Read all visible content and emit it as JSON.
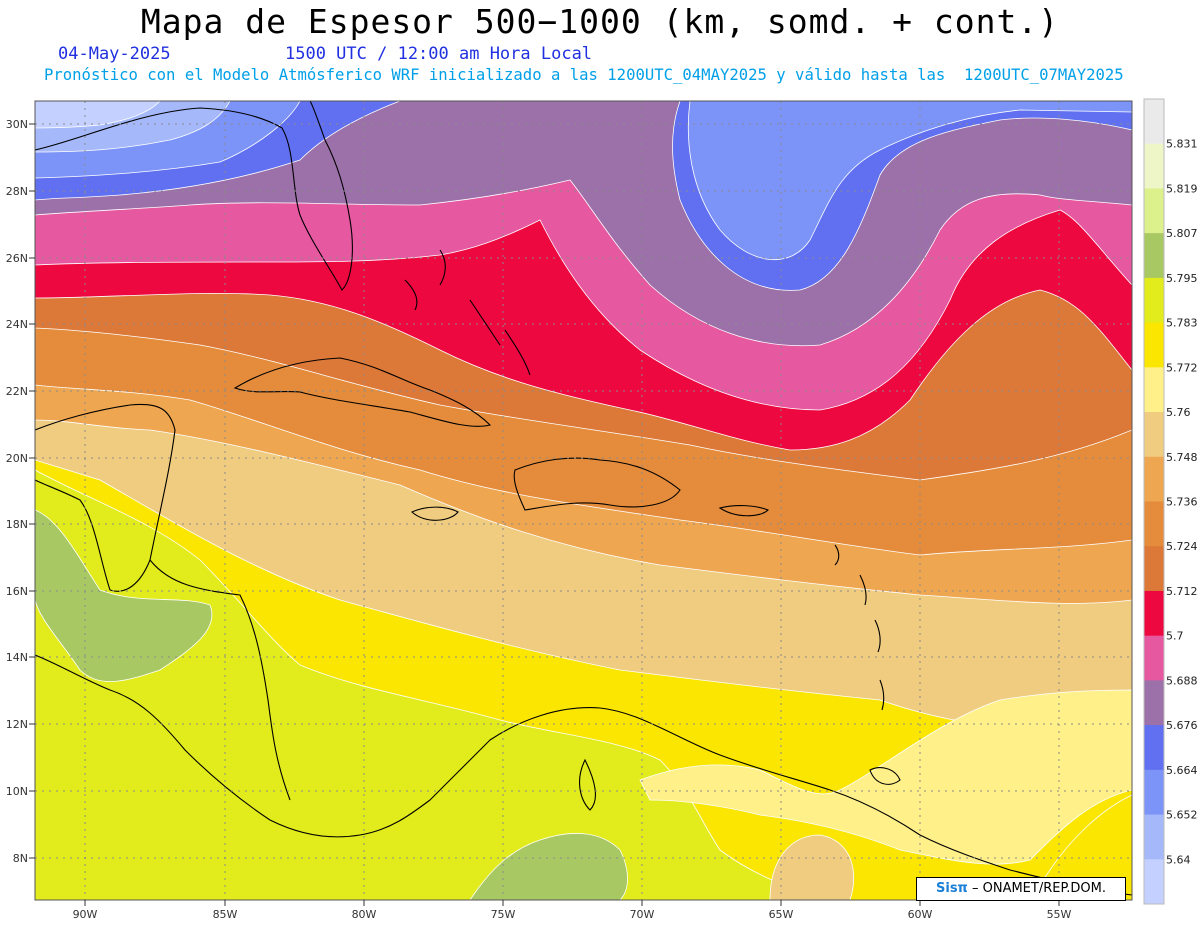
{
  "header": {
    "title": "Mapa de Espesor 500−1000 (km, somd. + cont.)",
    "date": "04-May-2025",
    "time": "1500 UTC / 12:00 am Hora Local",
    "description": "Pronóstico con el Modelo Atmósferico WRF inicializado a las 1200UTC_04MAY2025 y válido hasta las  1200UTC_07MAY2025"
  },
  "axes": {
    "lat_labels": [
      "30N",
      "28N",
      "26N",
      "24N",
      "22N",
      "20N",
      "18N",
      "16N",
      "14N",
      "12N",
      "10N",
      "8N"
    ],
    "lon_labels": [
      "90W",
      "85W",
      "80W",
      "75W",
      "70W",
      "65W",
      "60W",
      "55W"
    ]
  },
  "colorbar": {
    "labels": [
      "5.831",
      "5.819",
      "5.807",
      "5.795",
      "5.783",
      "5.772",
      "5.76",
      "5.748",
      "5.736",
      "5.724",
      "5.712",
      "5.7",
      "5.688",
      "5.676",
      "5.664",
      "5.652",
      "5.64"
    ],
    "colors": [
      "#eaeaea",
      "#eef6c8",
      "#dcf08c",
      "#a8c864",
      "#e2ec1c",
      "#fae600",
      "#fff08a",
      "#f0cc80",
      "#eea650",
      "#e48c3c",
      "#dc7838",
      "#ee0840",
      "#e658a0",
      "#9c70a8",
      "#6070f0",
      "#7c94f8",
      "#a4b8fa",
      "#c4d0ff"
    ]
  },
  "credit": {
    "brand": "Sisπ",
    "text": " – ONAMET/REP.DOM."
  }
}
